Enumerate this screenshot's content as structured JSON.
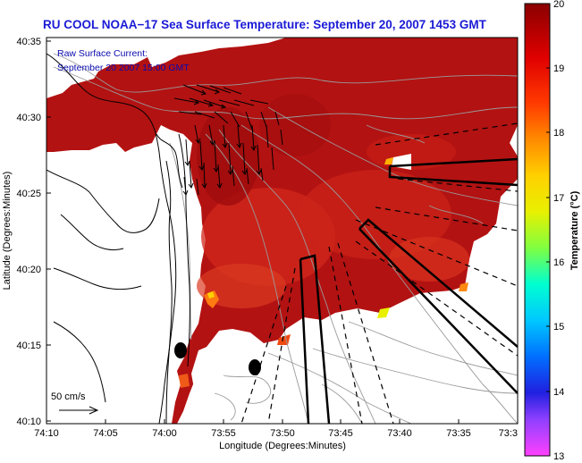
{
  "title": "RU COOL  NOAA−17  Sea Surface Temperature:  September 20, 2007 1453 GMT",
  "legend": {
    "line1": "Raw Surface Current:",
    "line2": "September 20 2007 15:00 GMT"
  },
  "scale_label": "50 cm/s",
  "axes": {
    "xlabel": "Longitude (Degrees:Minutes)",
    "ylabel": "Latitude (Degrees:Minutes)",
    "xticks": [
      "74:10",
      "74:05",
      "74:00",
      "73:55",
      "73:50",
      "73:45",
      "73:40",
      "73:35",
      "73:3"
    ],
    "yticks": [
      "40:35",
      "40:30",
      "40:25",
      "40:20",
      "40:15",
      "40:10"
    ]
  },
  "colorbar": {
    "label": "Temperature (°C)",
    "ticks": [
      "20",
      "19",
      "18",
      "17",
      "16",
      "15",
      "14",
      "13"
    ],
    "min": 13,
    "max": 20
  },
  "colors": {
    "title": "#1a1ad6",
    "sst_main": "#b01010",
    "sst_warm": "#cc1c14",
    "sst_cool": "#e2401c",
    "land": "#ffffff"
  }
}
